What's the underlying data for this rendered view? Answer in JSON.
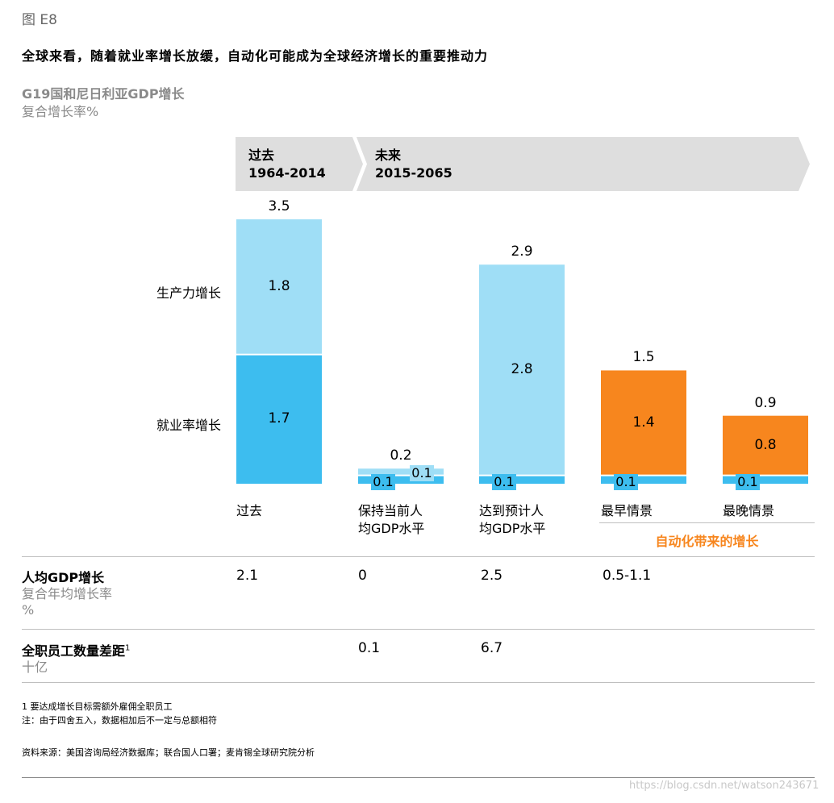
{
  "figure_number": "图 E8",
  "headline": "全球来看，随着就业率增长放缓，自动化可能成为全球经济增长的重要推动力",
  "subtitle": "G19国和尼日利亚GDP增长",
  "unit": "复合增长率%",
  "periods": {
    "past": {
      "name": "过去",
      "years": "1964-2014"
    },
    "future": {
      "name": "未来",
      "years": "2015-2065"
    }
  },
  "left_labels": {
    "productivity": "生产力增长",
    "employment": "就业率增长"
  },
  "automation_group_label": "自动化带来的增长",
  "colors": {
    "light_blue": "#9fdef6",
    "dark_blue": "#3dbdef",
    "orange": "#f7861e",
    "band": "#dedede"
  },
  "chart_data": {
    "type": "bar",
    "stacked": true,
    "categories": [
      "过去",
      "保持当前人均GDP水平",
      "达到预计人均GDP水平",
      "最早情景",
      "最晚情景"
    ],
    "category_lines": [
      [
        "过去"
      ],
      [
        "保持当前人",
        "均GDP水平"
      ],
      [
        "达到预计人",
        "均GDP水平"
      ],
      [
        "最早情景"
      ],
      [
        "最晚情景"
      ]
    ],
    "series": [
      {
        "name": "就业率增长",
        "values": [
          1.7,
          0.1,
          0.1,
          0.1,
          0.1
        ]
      },
      {
        "name": "生产力增长",
        "values": [
          1.8,
          0.1,
          2.8,
          1.4,
          0.8
        ]
      }
    ],
    "totals": [
      3.5,
      0.2,
      2.9,
      1.5,
      0.9
    ],
    "top_series_colors": [
      "light_blue",
      "light_blue",
      "light_blue",
      "orange",
      "orange"
    ]
  },
  "table": {
    "rows": [
      {
        "title": "人均GDP增长",
        "sub1": "复合年均增长率",
        "sub2": "%",
        "values": [
          "2.1",
          "0",
          "2.5",
          "0.5-1.1",
          ""
        ]
      },
      {
        "title": "全职员工数量差距",
        "sup": "1",
        "sub1": "十亿",
        "sub2": "",
        "values": [
          "",
          "0.1",
          "6.7",
          "",
          ""
        ]
      }
    ]
  },
  "notes": {
    "footnote": "1 要达成增长目标需额外雇佣全职员工",
    "note": "注：由于四舍五入，数据相加后不一定与总额相符",
    "source": "资料来源：美国咨询局经济数据库；联合国人口署；麦肯锡全球研究院分析"
  },
  "watermark": "https://blog.csdn.net/watson243671"
}
